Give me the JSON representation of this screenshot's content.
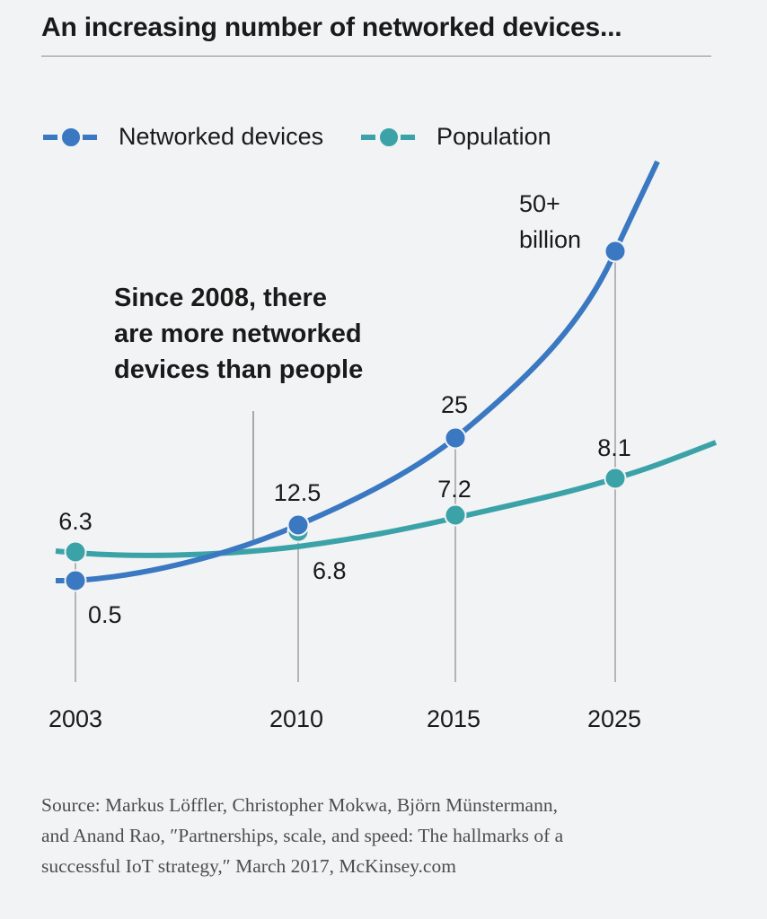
{
  "title": "An increasing number of networked devices...",
  "legend": [
    {
      "label": "Networked devices",
      "color": "#3a78c2"
    },
    {
      "label": "Population",
      "color": "#3ba3a8"
    }
  ],
  "annotation": {
    "lines": [
      "Since 2008, there",
      "are more networked",
      "devices than people"
    ]
  },
  "source": {
    "lines": [
      "Source: Markus Löffler, Christopher Mokwa, Björn Münstermann,",
      "and Anand Rao, ″Partnerships, scale, and speed: The hallmarks of a",
      "successful IoT strategy,″ March 2017, McKinsey.com"
    ]
  },
  "chart_data": {
    "type": "line",
    "x_tick_labels": [
      "2003",
      "2010",
      "2015",
      "2025"
    ],
    "series": [
      {
        "name": "Networked devices",
        "color": "#3a78c2",
        "points": [
          {
            "x": "2003",
            "y": 0.5,
            "label": "0.5"
          },
          {
            "x": "2010",
            "y": 12.5,
            "label": "12.5"
          },
          {
            "x": "2015",
            "y": 25,
            "label": "25"
          },
          {
            "x": "2025",
            "y": 50,
            "label": "50+ billion"
          }
        ]
      },
      {
        "name": "Population",
        "color": "#3ba3a8",
        "points": [
          {
            "x": "2003",
            "y": 6.3,
            "label": "6.3"
          },
          {
            "x": "2010",
            "y": 6.8,
            "label": "6.8"
          },
          {
            "x": "2015",
            "y": 7.2,
            "label": "7.2"
          },
          {
            "x": "2025",
            "y": 8.1,
            "label": "8.1"
          }
        ]
      }
    ],
    "annotation_year": "2008"
  }
}
